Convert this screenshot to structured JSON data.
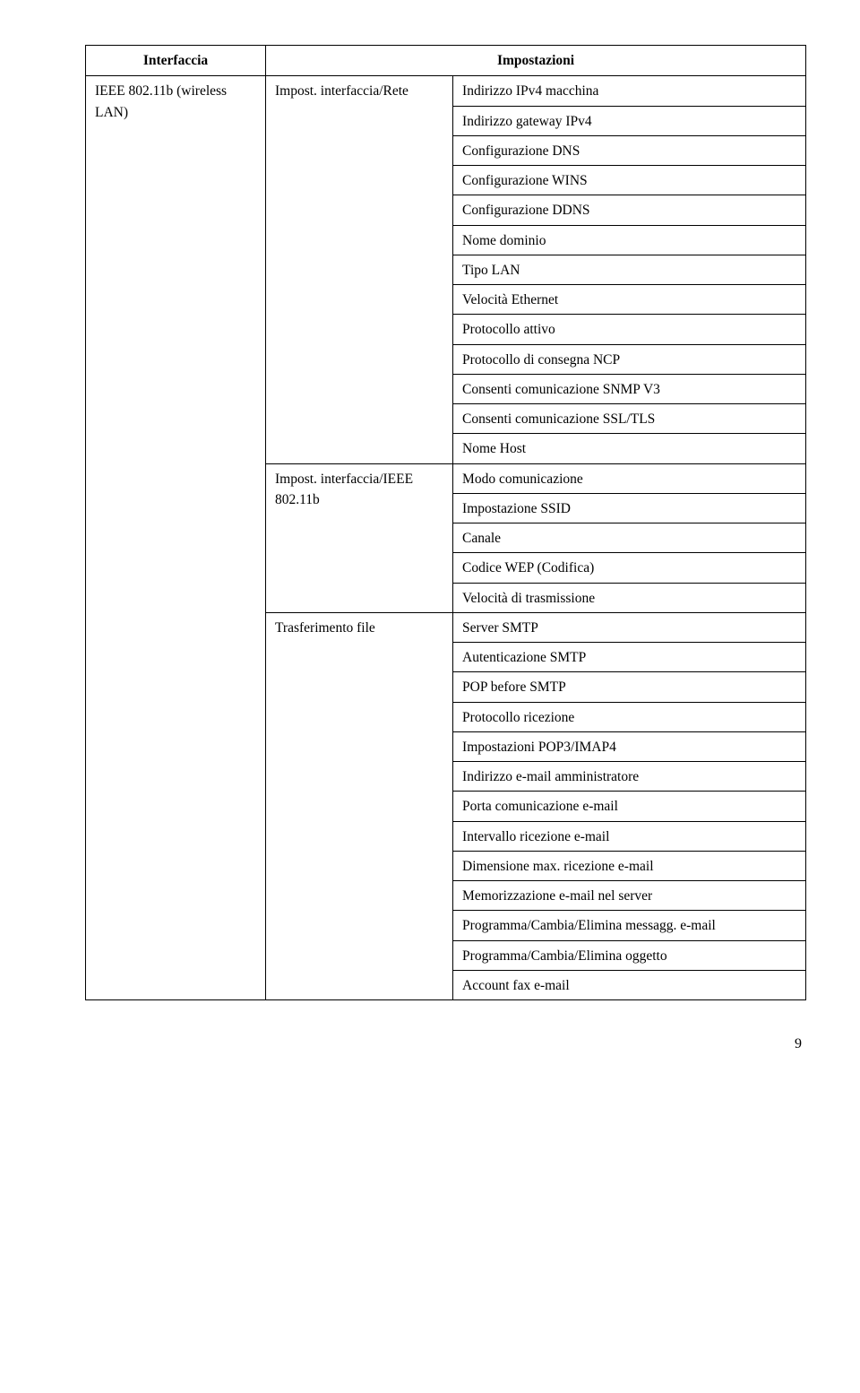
{
  "headers": {
    "col1": "Interfaccia",
    "col23": "Impostazioni"
  },
  "col1_row": "IEEE 802.11b (wireless LAN)",
  "group1_label": "Impost. interfaccia/Rete",
  "group1_items": [
    "Indirizzo IPv4 macchina",
    "Indirizzo gateway IPv4",
    "Configurazione DNS",
    "Configurazione WINS",
    "Configurazione DDNS",
    "Nome dominio",
    "Tipo LAN",
    "Velocità Ethernet",
    "Protocollo attivo",
    "Protocollo di consegna NCP",
    "Consenti comunicazione SNMP V3",
    "Consenti comunicazione SSL/TLS",
    "Nome Host"
  ],
  "group2_label": "Impost. interfaccia/IEEE 802.11b",
  "group2_items": [
    "Modo comunicazione",
    "Impostazione SSID",
    "Canale",
    "Codice WEP (Codifica)",
    "Velocità di trasmissione"
  ],
  "group3_label": "Trasferimento file",
  "group3_items": [
    "Server SMTP",
    "Autenticazione SMTP",
    "POP before SMTP",
    "Protocollo ricezione",
    "Impostazioni POP3/IMAP4",
    "Indirizzo e-mail amministratore",
    "Porta comunicazione e-mail",
    "Intervallo ricezione e-mail",
    "Dimensione max. ricezione e-mail",
    "Memorizzazione e-mail nel server",
    "Programma/Cambia/Elimina messagg. e-mail",
    "Programma/Cambia/Elimina oggetto",
    "Account fax e-mail"
  ],
  "page_number": "9"
}
